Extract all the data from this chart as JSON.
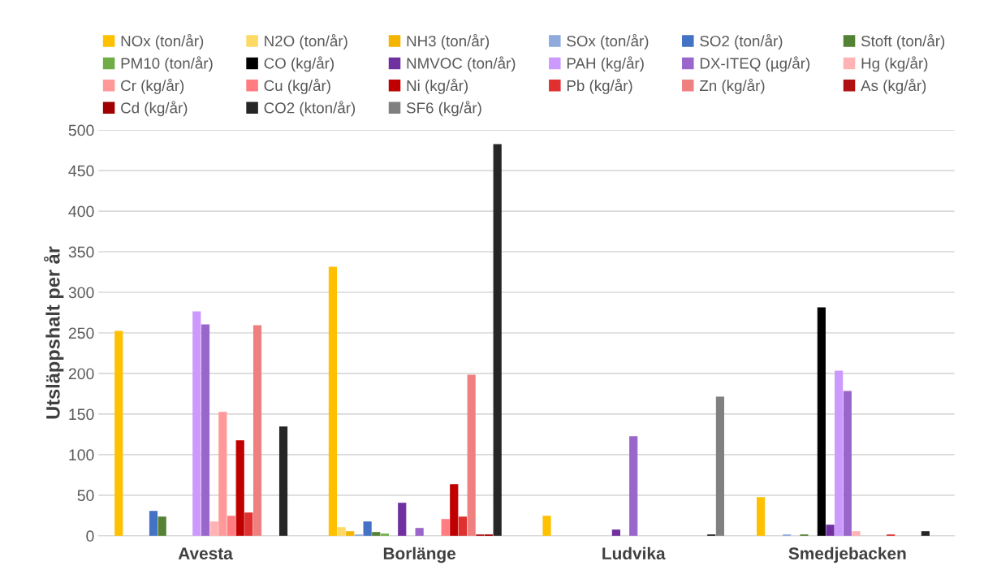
{
  "chart_data": {
    "type": "bar",
    "ylabel": "Utsläppshalt per år",
    "categories": [
      "Avesta",
      "Borlänge",
      "Ludvika",
      "Smedjebacken"
    ],
    "ylim": [
      0,
      500
    ],
    "yticks": [
      0,
      50,
      100,
      150,
      200,
      250,
      300,
      350,
      400,
      450,
      500
    ],
    "grid": "y",
    "legend": "top",
    "series": [
      {
        "name": "NOx (ton/år)",
        "color": "#ffc000",
        "values": [
          252,
          331,
          24,
          47
        ]
      },
      {
        "name": "N2O (ton/år)",
        "color": "#ffd966",
        "values": [
          null,
          10,
          null,
          null
        ]
      },
      {
        "name": "NH3 (ton/år)",
        "color": "#f4b400",
        "values": [
          null,
          5,
          null,
          null
        ]
      },
      {
        "name": "SOx (ton/år)",
        "color": "#8faadc",
        "values": [
          null,
          1,
          null,
          1
        ]
      },
      {
        "name": "SO2 (ton/år)",
        "color": "#4472c4",
        "values": [
          30,
          17,
          null,
          null
        ]
      },
      {
        "name": "Stoft (ton/år)",
        "color": "#548235",
        "values": [
          23,
          4,
          null,
          1
        ]
      },
      {
        "name": "PM10 (ton/år)",
        "color": "#70ad47",
        "values": [
          null,
          2,
          null,
          null
        ]
      },
      {
        "name": "CO (kg/år)",
        "color": "#000000",
        "values": [
          null,
          null,
          null,
          281
        ]
      },
      {
        "name": "NMVOC (ton/år)",
        "color": "#7030a0",
        "values": [
          null,
          40,
          7,
          13
        ]
      },
      {
        "name": "PAH (kg/år)",
        "color": "#cc99ff",
        "values": [
          276,
          null,
          null,
          203
        ]
      },
      {
        "name": "DX-ITEQ (µg/år)",
        "color": "#9966cc",
        "values": [
          260,
          9,
          122,
          178
        ]
      },
      {
        "name": "Hg (kg/år)",
        "color": "#ffb3b5",
        "values": [
          17,
          null,
          null,
          5
        ]
      },
      {
        "name": "Cr (kg/år)",
        "color": "#ff9999",
        "values": [
          152,
          null,
          null,
          null
        ]
      },
      {
        "name": "Cu (kg/år)",
        "color": "#ff7c80",
        "values": [
          24,
          20,
          null,
          null
        ]
      },
      {
        "name": "Ni (kg/år)",
        "color": "#c00000",
        "values": [
          117,
          63,
          null,
          null
        ]
      },
      {
        "name": "Pb (kg/år)",
        "color": "#e03030",
        "values": [
          28,
          23,
          null,
          1
        ]
      },
      {
        "name": "Zn (kg/år)",
        "color": "#f08080",
        "values": [
          259,
          198,
          null,
          null
        ]
      },
      {
        "name": "As (kg/år)",
        "color": "#b01010",
        "values": [
          null,
          1,
          null,
          null
        ]
      },
      {
        "name": "Cd (kg/år)",
        "color": "#a00000",
        "values": [
          null,
          1,
          null,
          null
        ]
      },
      {
        "name": "CO2 (kton/år)",
        "color": "#262626",
        "values": [
          134,
          482,
          1,
          5
        ]
      },
      {
        "name": "SF6 (kg/år)",
        "color": "#808080",
        "values": [
          null,
          null,
          171,
          null
        ]
      }
    ]
  }
}
